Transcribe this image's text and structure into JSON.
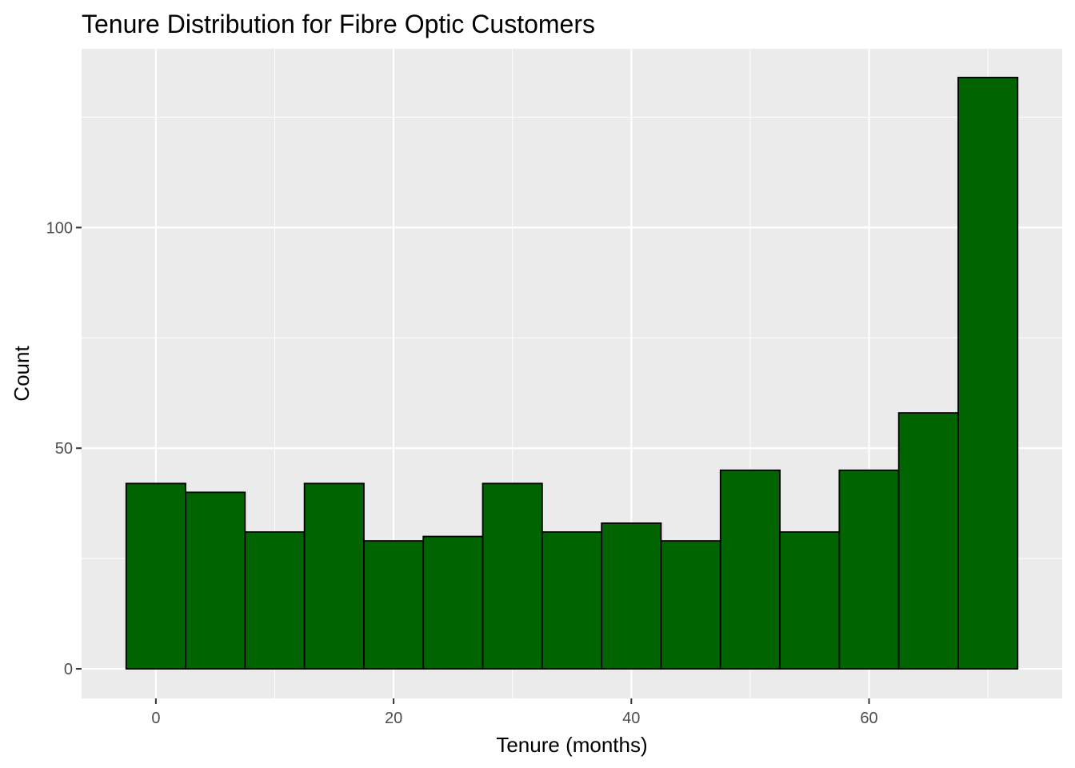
{
  "chart_data": {
    "type": "histogram",
    "title": "Tenure Distribution for Fibre Optic Customers",
    "xlabel": "Tenure (months)",
    "ylabel": "Count",
    "xlim": [
      -6.25,
      76.25
    ],
    "ylim": [
      -6.7,
      140.5
    ],
    "x_ticks": [
      0,
      20,
      40,
      60
    ],
    "x_minor_ticks": [
      10,
      30,
      50,
      70
    ],
    "y_ticks": [
      0,
      50,
      100
    ],
    "y_minor_ticks": [
      25,
      75,
      125
    ],
    "bin_width": 5,
    "bin_centers": [
      0,
      5,
      10,
      15,
      20,
      25,
      30,
      35,
      40,
      45,
      50,
      55,
      60,
      65,
      70
    ],
    "values": [
      42,
      40,
      31,
      42,
      29,
      30,
      42,
      31,
      33,
      29,
      45,
      31,
      45,
      58,
      134
    ],
    "grid": true,
    "legend": "none",
    "colors": {
      "bar_fill": "#006400",
      "bar_stroke": "#000000",
      "panel_bg": "#ebebeb",
      "grid": "#ffffff",
      "tick_text": "#4d4d4d"
    }
  }
}
